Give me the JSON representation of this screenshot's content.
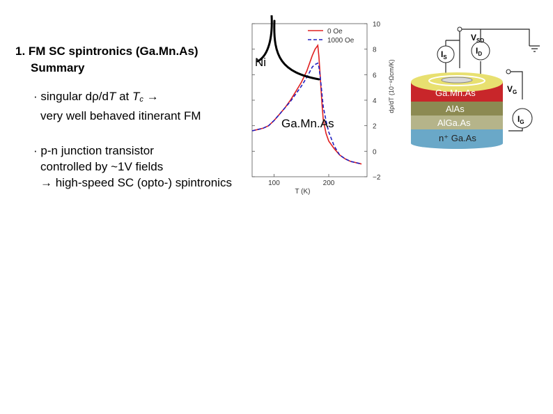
{
  "title": {
    "line1": "1. FM SC spintronics (Ga.Mn.As)",
    "line2": "Summary"
  },
  "bullet1": {
    "bullet": "·",
    "text_a": " singular d",
    "rho": "ρ",
    "text_b": "/d",
    "T": "T",
    "text_c": " at ",
    "Tc": "T",
    "c_sub": "c",
    "arrow": " →",
    "line2": "very well behaved itinerant FM"
  },
  "bullet2": {
    "bullet": "·",
    "line1": " p-n junction transistor",
    "line2": "controlled by ~1V fields",
    "line3": "→ high-speed SC (opto-) spintronics"
  },
  "overlay": {
    "ni_label": "Ni",
    "gamnas_label": "Ga.Mn.As"
  },
  "chart_data": {
    "type": "line",
    "xlabel": "T (K)",
    "ylabel": "dρ/dT (10⁻⁸Ωcm/K)",
    "xticks": [
      "100",
      "200"
    ],
    "yticks": [
      "10",
      "8",
      "6",
      "4",
      "2",
      "0",
      "−2"
    ],
    "xlim": [
      60,
      270
    ],
    "ylim": [
      -2,
      10
    ],
    "series": [
      {
        "name": "0 Oe",
        "color": "#e02020",
        "x": [
          60,
          70,
          80,
          90,
          100,
          110,
          120,
          130,
          140,
          150,
          160,
          165,
          170,
          175,
          180,
          182,
          184,
          186,
          188,
          190,
          195,
          200,
          210,
          220,
          230,
          240,
          250,
          260
        ],
        "y": [
          1.6,
          1.7,
          1.8,
          2.0,
          2.4,
          2.9,
          3.4,
          4.0,
          4.7,
          5.4,
          6.3,
          6.9,
          7.5,
          8.0,
          8.3,
          7.4,
          6.2,
          4.8,
          3.5,
          2.5,
          1.4,
          0.8,
          0.2,
          -0.3,
          -0.6,
          -0.8,
          -0.9,
          -1.0
        ]
      },
      {
        "name": "1000 Oe",
        "color": "#2020c0",
        "x": [
          60,
          70,
          80,
          90,
          100,
          110,
          120,
          130,
          140,
          150,
          160,
          165,
          170,
          175,
          180,
          182,
          184,
          186,
          188,
          190,
          195,
          200,
          210,
          220,
          230,
          240,
          250,
          260
        ],
        "y": [
          1.6,
          1.7,
          1.8,
          2.0,
          2.4,
          2.9,
          3.4,
          3.9,
          4.5,
          5.1,
          5.8,
          6.2,
          6.6,
          6.8,
          6.9,
          6.6,
          6.0,
          5.2,
          4.3,
          3.5,
          2.4,
          1.5,
          0.4,
          -0.3,
          -0.6,
          -0.8,
          -0.9,
          -1.0
        ]
      }
    ]
  },
  "device": {
    "vsd": "V",
    "vsd_sub": "SD",
    "is": "I",
    "is_sub": "S",
    "id": "I",
    "id_sub": "D",
    "vg": "V",
    "vg_sub": "G",
    "ig": "I",
    "ig_sub": "G",
    "layers": [
      "Ga.Mn.As",
      "AlAs",
      "AlGa.As",
      "n⁺ Ga.As"
    ],
    "colors": {
      "gamnas": "#c8262a",
      "alas": "#8c8a52",
      "algaas": "#b5b48a",
      "gaas": "#6aa8c8",
      "top": "#e8e070"
    }
  }
}
